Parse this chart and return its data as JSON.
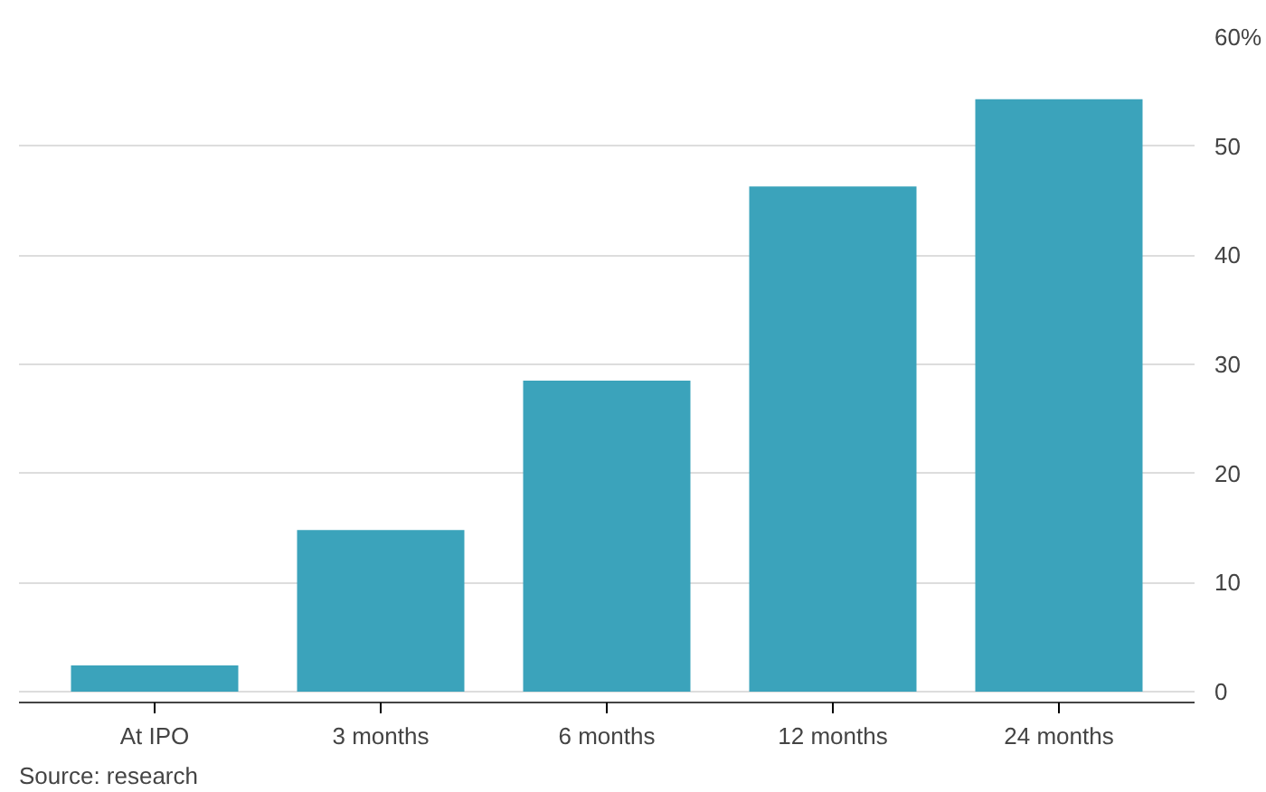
{
  "chart_data": {
    "type": "bar",
    "categories": [
      "At IPO",
      "3 months",
      "6 months",
      "12 months",
      "24 months"
    ],
    "values": [
      2.4,
      14.8,
      28.5,
      46.3,
      54.3
    ],
    "color": "#3ba3bb",
    "ylim": [
      -1,
      60
    ],
    "yticks": [
      0,
      10,
      20,
      30,
      40,
      50,
      {
        "value": 60,
        "label": "60%"
      }
    ],
    "grid": "y",
    "annotations": [
      "Source: research"
    ]
  }
}
